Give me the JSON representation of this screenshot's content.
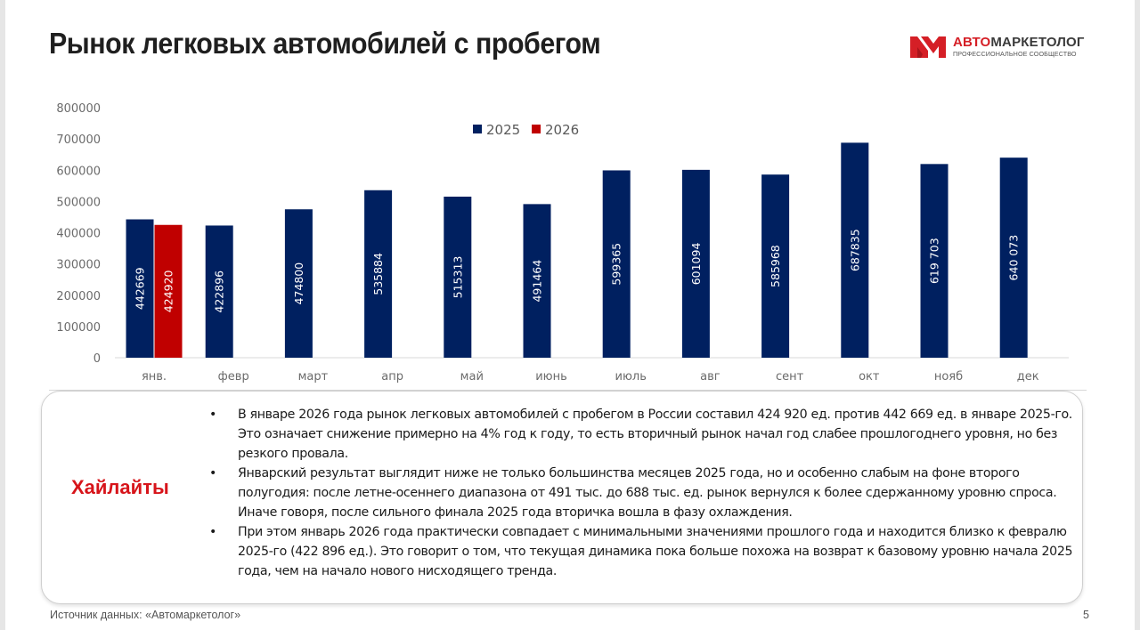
{
  "slide": {
    "title": "Рынок легковых автомобилей с пробегом",
    "page_number": "5",
    "source": "Источник данных: «Автомаркетолог»"
  },
  "logo": {
    "icon": "am-monogram-icon",
    "name_part1": "АВТО",
    "name_part2": "МАРКЕТОЛОГ",
    "tagline": "ПРОФЕССИОНАЛЬНОЕ СООБЩЕСТВО",
    "color": "#d51f26"
  },
  "chart_data": {
    "type": "bar",
    "title": "",
    "xlabel": "",
    "ylabel": "",
    "ylim": [
      0,
      800000
    ],
    "yticks": [
      "0",
      "100000",
      "200000",
      "300000",
      "400000",
      "500000",
      "600000",
      "700000",
      "800000"
    ],
    "ytick_values": [
      0,
      100000,
      200000,
      300000,
      400000,
      500000,
      600000,
      700000,
      800000
    ],
    "grid": false,
    "legend_position": "top-center",
    "categories": [
      "янв.",
      "февр",
      "март",
      "апр",
      "май",
      "июнь",
      "июль",
      "авг",
      "сент",
      "окт",
      "нояб",
      "дек"
    ],
    "series": [
      {
        "name": "2025",
        "color": "#002060",
        "values": [
          442669,
          422896,
          474800,
          535884,
          515313,
          491464,
          599365,
          601094,
          585968,
          687835,
          619703,
          640073
        ],
        "labels": [
          "442669",
          "422896",
          "474800",
          "535884",
          "515313",
          "491464",
          "599365",
          "601094",
          "585968",
          "687835",
          "619 703",
          "640 073"
        ]
      },
      {
        "name": "2026",
        "color": "#c00000",
        "values": [
          424920,
          null,
          null,
          null,
          null,
          null,
          null,
          null,
          null,
          null,
          null,
          null
        ],
        "labels": [
          "424920",
          "",
          "",
          "",
          "",
          "",
          "",
          "",
          "",
          "",
          "",
          ""
        ]
      }
    ]
  },
  "highlights": {
    "title": "Хайлайты",
    "title_color": "#d7141a",
    "bullet_glyph": "•",
    "items": [
      "В январе 2026 года рынок легковых автомобилей с пробегом в России составил 424 920 ед. против 442 669 ед. в январе 2025-го. Это означает снижение примерно на 4% год к году, то есть вторичный рынок начал год слабее прошлогоднего уровня, но без резкого провала.",
      "Январский результат выглядит ниже не только большинства месяцев 2025 года, но и особенно слабым на фоне второго полугодия: после летне-осеннего диапазона от 491 тыс. до 688 тыс. ед. рынок вернулся к более сдержанному уровню спроса. Иначе говоря, после сильного финала 2025 года вторичка вошла в фазу охлаждения.",
      "При этом январь 2026 года практически совпадает с минимальными значениями прошлого года и находится близко к февралю 2025-го (422 896 ед.). Это говорит о том, что текущая динамика пока больше похожа на возврат к базовому уровню начала 2025 года, чем на начало нового нисходящего тренда."
    ]
  }
}
